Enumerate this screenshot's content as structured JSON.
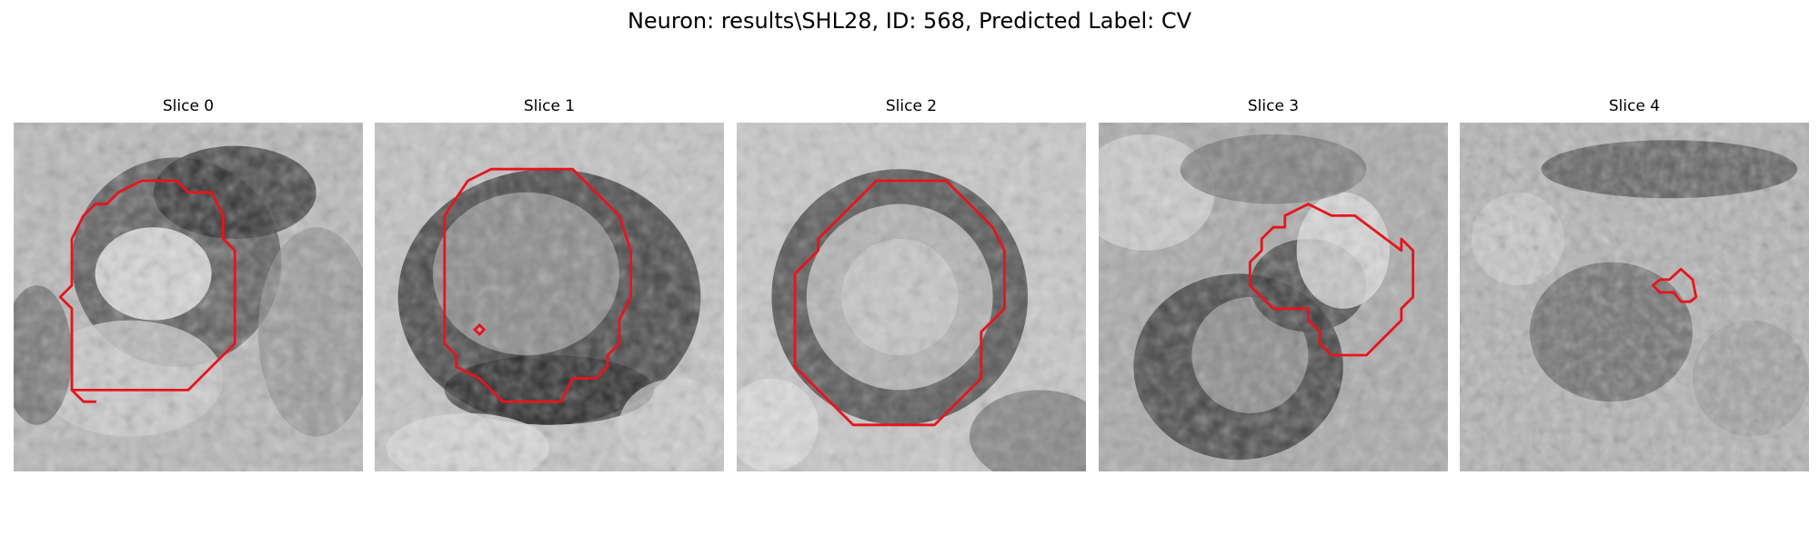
{
  "figure": {
    "title": "Neuron: results\\SHL28, ID: 568, Predicted Label: CV"
  },
  "panels": [
    {
      "title": "Slice 0"
    },
    {
      "title": "Slice 1"
    },
    {
      "title": "Slice 2"
    },
    {
      "title": "Slice 3"
    },
    {
      "title": "Slice 4"
    }
  ],
  "colors": {
    "contour": "#e8141c",
    "background": "#ffffff"
  }
}
